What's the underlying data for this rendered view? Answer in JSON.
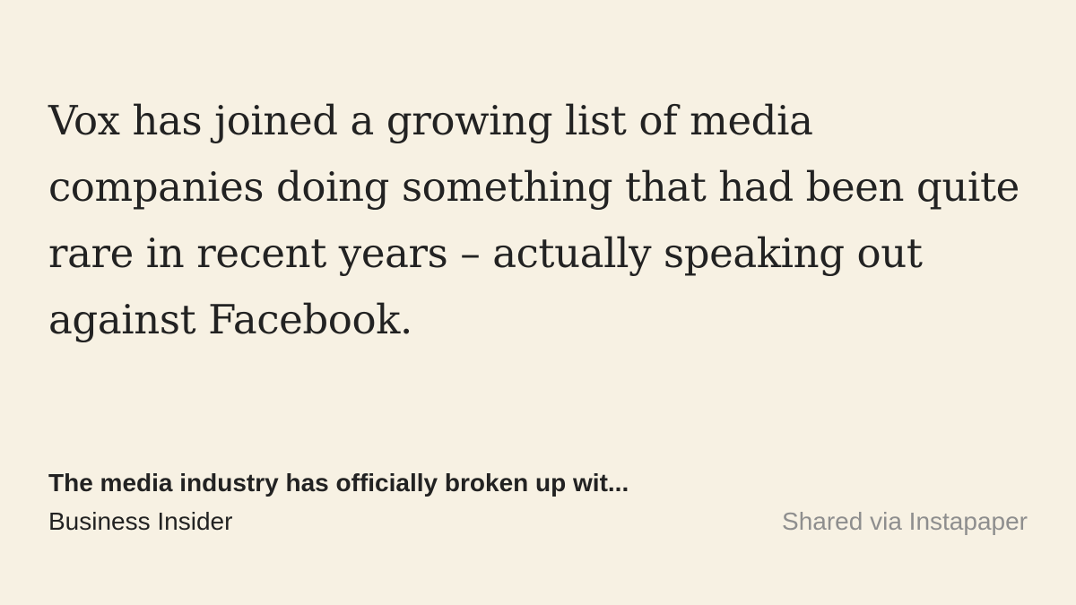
{
  "quote": {
    "text": "Vox has joined a growing list of media companies doing something that had been quite rare in recent years – actually speaking out against Facebook."
  },
  "article": {
    "title": "The media industry has officially broken up wit...",
    "source": "Business Insider"
  },
  "footer": {
    "shared_via": "Shared via Instapaper"
  },
  "colors": {
    "background": "#f7f1e3",
    "text": "#222222",
    "muted": "#8e8e8e"
  }
}
